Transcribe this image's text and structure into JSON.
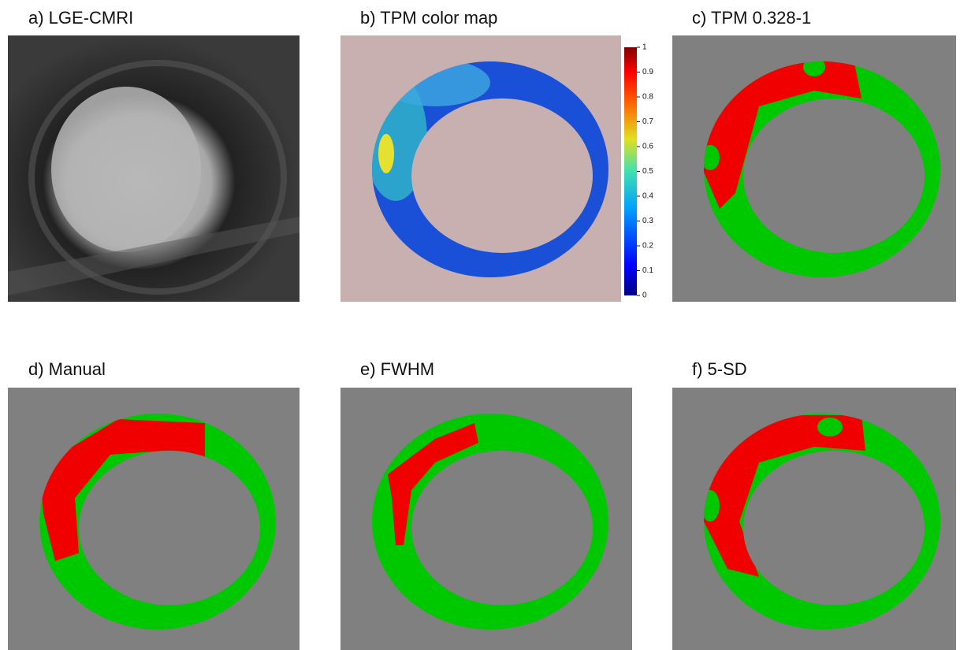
{
  "panels": [
    {
      "title": "a) LGE-CMRI"
    },
    {
      "title": "b) TPM color map"
    },
    {
      "title": "c) TPM 0.328-1"
    },
    {
      "title": "d) Manual"
    },
    {
      "title": "e) FWHM"
    },
    {
      "title": "f) 5-SD"
    }
  ],
  "colorbar": {
    "lim": [
      0,
      1
    ],
    "ticks": [
      0,
      0.1,
      0.2,
      0.3,
      0.4,
      0.5,
      0.6,
      0.7,
      0.8,
      0.9,
      1
    ]
  }
}
